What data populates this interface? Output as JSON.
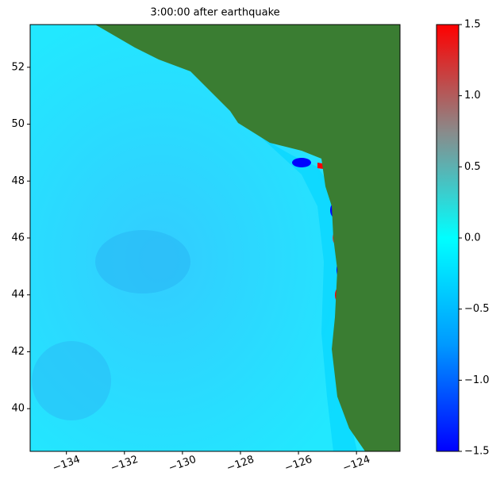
{
  "chart_data": {
    "type": "heatmap",
    "title": "3:00:00 after earthquake",
    "xlim": [
      -135.25,
      -122.5
    ],
    "ylim": [
      38.5,
      53.5
    ],
    "xticks": [
      {
        "value": -134,
        "label": "−134"
      },
      {
        "value": -132,
        "label": "−132"
      },
      {
        "value": -130,
        "label": "−130"
      },
      {
        "value": -128,
        "label": "−128"
      },
      {
        "value": -126,
        "label": "−126"
      },
      {
        "value": -124,
        "label": "−124"
      }
    ],
    "yticks": [
      40,
      42,
      44,
      46,
      48,
      50,
      52
    ],
    "colorbar": {
      "lim": [
        -1.5,
        1.5
      ],
      "ticks": [
        {
          "value": -1.5,
          "label": "−1.5"
        },
        {
          "value": -1.0,
          "label": "−1.0"
        },
        {
          "value": -0.5,
          "label": "−0.5"
        },
        {
          "value": 0,
          "label": "0.0"
        },
        0.5,
        {
          "value": 1.0,
          "label": "1.0"
        },
        1.5
      ],
      "colors": [
        "#0000ff",
        "#0099ff",
        "#00ffff",
        "#8a8a8a",
        "#ff0000"
      ]
    },
    "land_color": "#3a7d32"
  }
}
